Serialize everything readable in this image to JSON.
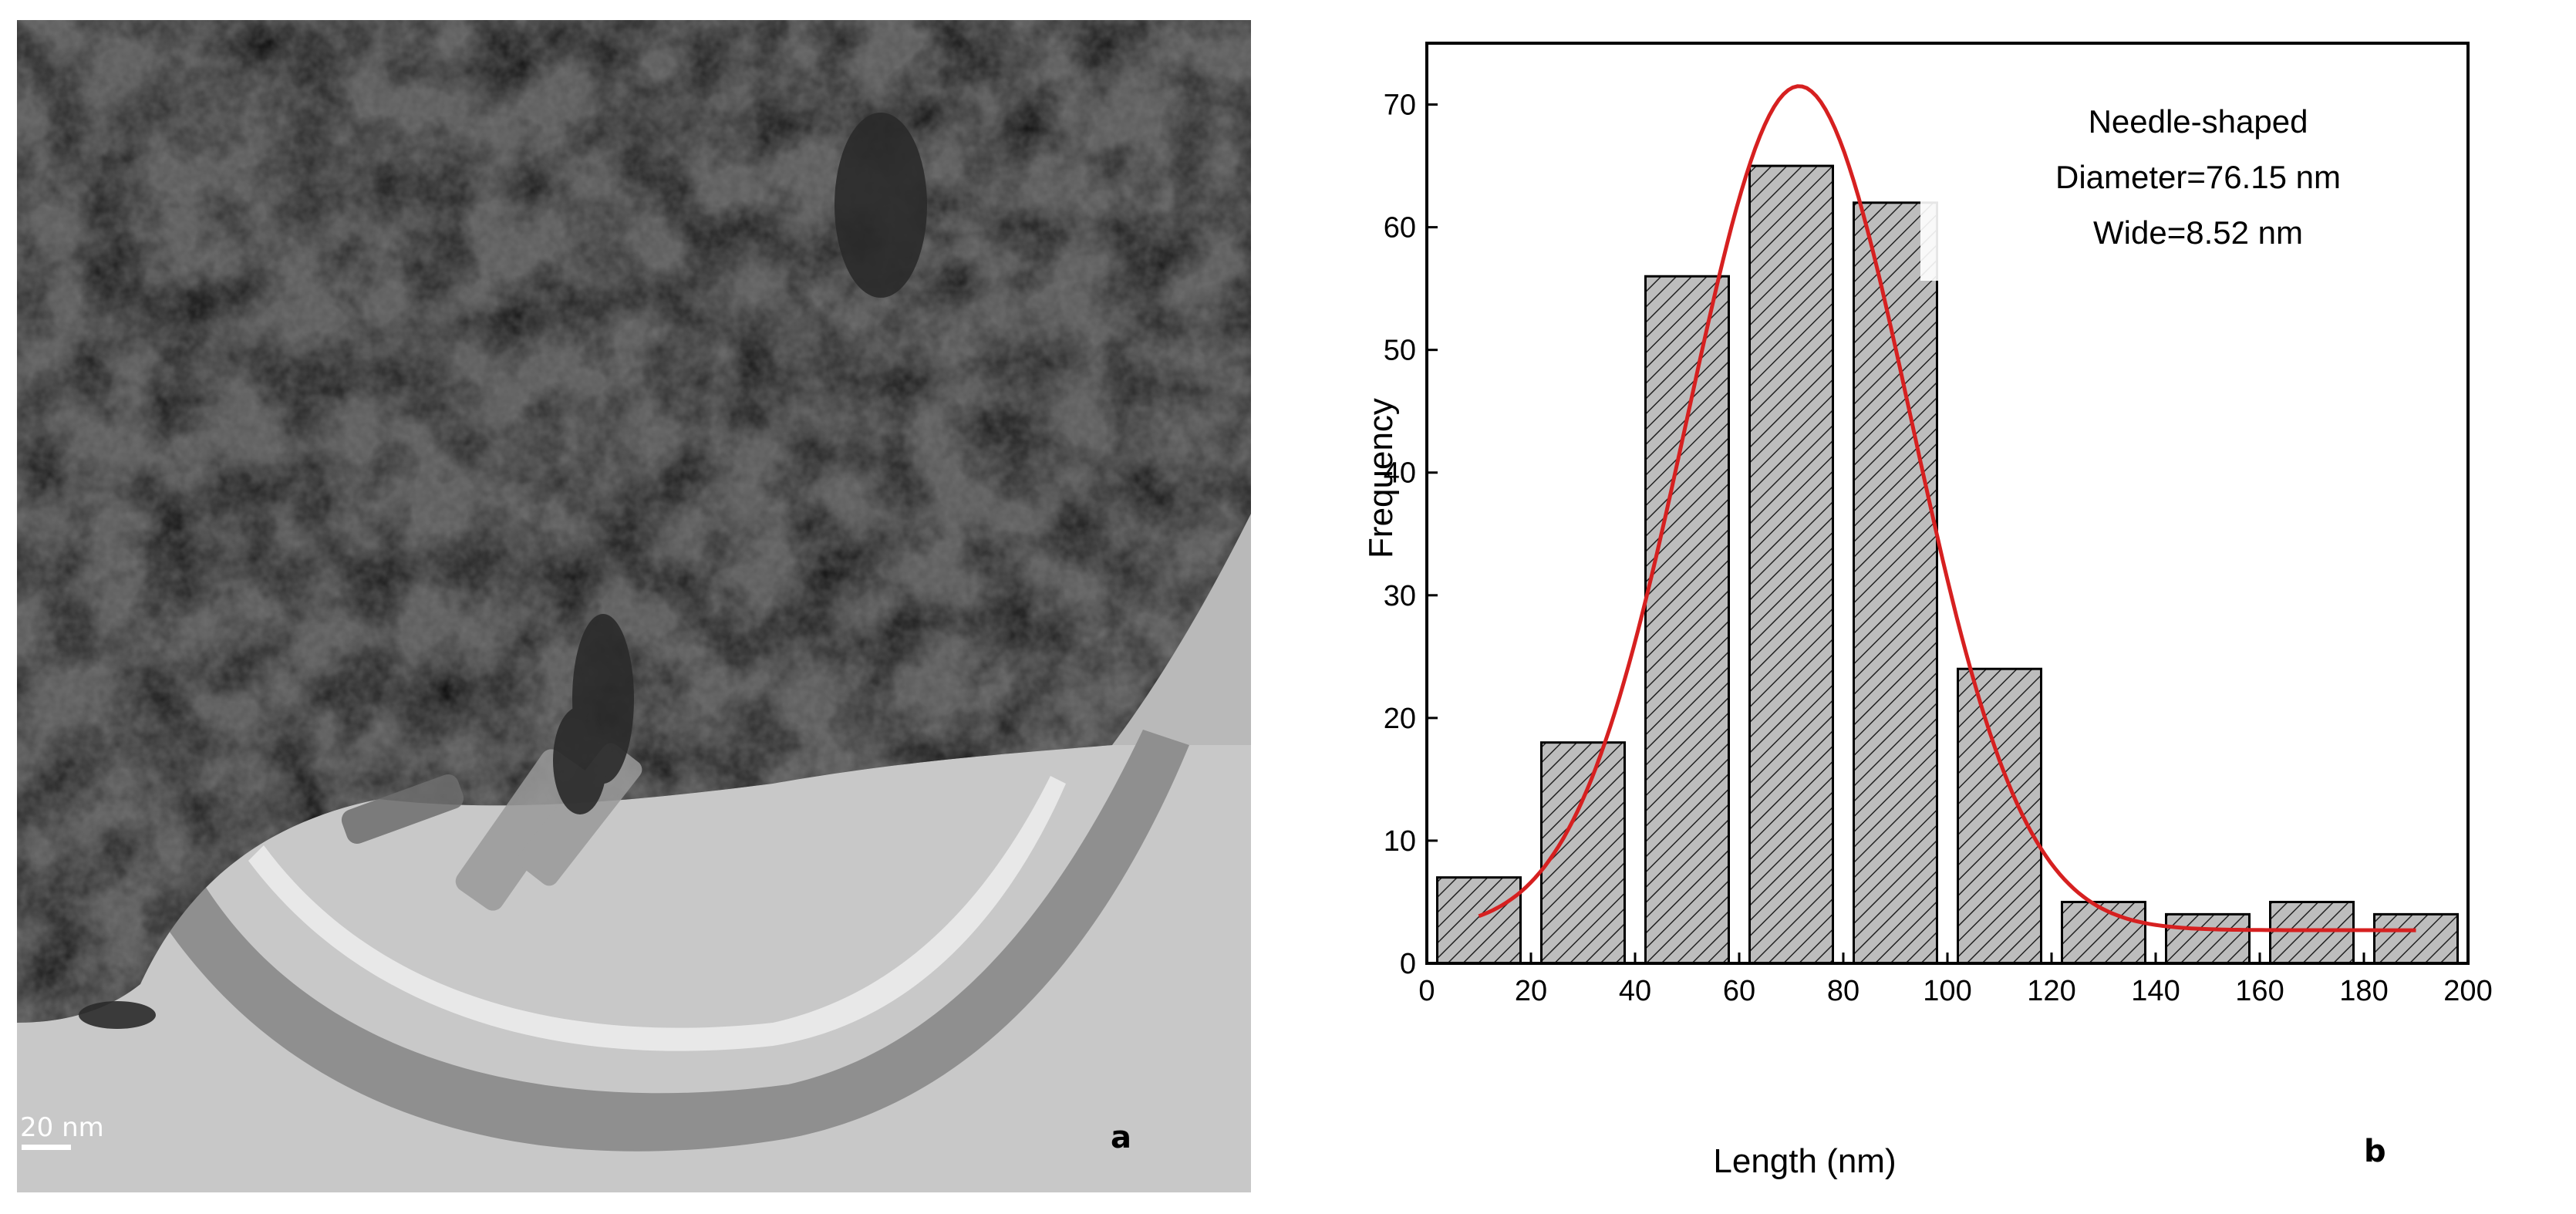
{
  "panel_a": {
    "label": "a",
    "scale_bar": "20 nm"
  },
  "panel_b": {
    "label": "b"
  },
  "chart_data": {
    "type": "bar",
    "title": "",
    "xlabel": "Length (nm)",
    "ylabel": "Frequency",
    "xlim": [
      0,
      200
    ],
    "ylim": [
      0,
      75
    ],
    "x_ticks": [
      0,
      20,
      40,
      60,
      80,
      100,
      120,
      140,
      160,
      180,
      200
    ],
    "y_ticks": [
      0,
      10,
      20,
      30,
      40,
      50,
      60,
      70
    ],
    "grid": false,
    "bins": [
      {
        "x0": 2,
        "x1": 18,
        "value": 7
      },
      {
        "x0": 22,
        "x1": 38,
        "value": 18
      },
      {
        "x0": 42,
        "x1": 58,
        "value": 56
      },
      {
        "x0": 62,
        "x1": 78,
        "value": 65
      },
      {
        "x0": 82,
        "x1": 98,
        "value": 62
      },
      {
        "x0": 102,
        "x1": 118,
        "value": 24
      },
      {
        "x0": 122,
        "x1": 138,
        "value": 5
      },
      {
        "x0": 142,
        "x1": 158,
        "value": 4
      },
      {
        "x0": 162,
        "x1": 178,
        "value": 5
      },
      {
        "x0": 182,
        "x1": 198,
        "value": 4
      }
    ],
    "bar_fill": "#bdbdbd",
    "fit_curve": {
      "type": "gaussian",
      "color": "#d62020",
      "x_start": 10,
      "x_end": 190,
      "center": 71.5,
      "sigma": 21.5,
      "amplitude": 68.8,
      "baseline": 2.7
    },
    "annotations": [
      "Needle-shaped",
      "Diameter=76.15 nm",
      "Wide=8.52 nm"
    ]
  }
}
